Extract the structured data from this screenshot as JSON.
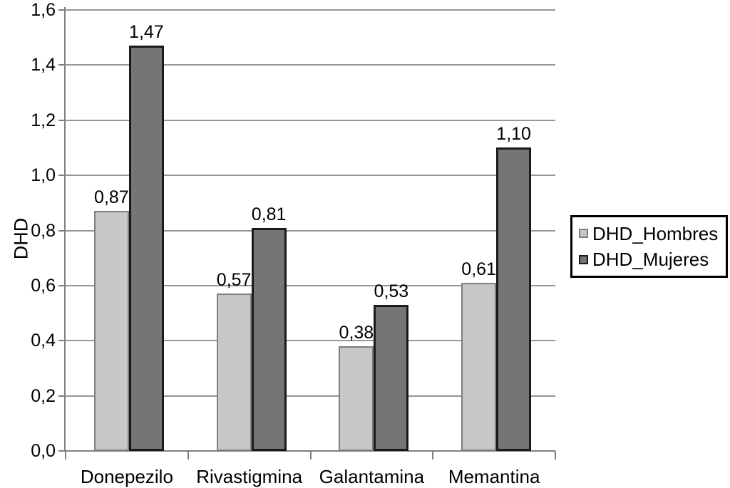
{
  "chart_data": {
    "type": "bar",
    "title": "",
    "xlabel": "",
    "ylabel": "DHD",
    "categories": [
      "Donepezilo",
      "Rivastigmina",
      "Galantamina",
      "Memantina"
    ],
    "series": [
      {
        "name": "DHD_Hombres",
        "values": [
          0.87,
          0.57,
          0.38,
          0.61
        ],
        "value_labels": [
          "0,87",
          "0,57",
          "0,38",
          "0,61"
        ],
        "fill": "#c5c7c9",
        "border": "#7f7f7f"
      },
      {
        "name": "DHD_Mujeres",
        "values": [
          1.47,
          0.81,
          0.53,
          1.1
        ],
        "value_labels": [
          "1,47",
          "0,81",
          "0,53",
          "1,10"
        ],
        "fill": "#737577",
        "border": "#1a1a1a"
      }
    ],
    "ylim": [
      0,
      1.6
    ],
    "ytick_step": 0.2,
    "ytick_labels": [
      "0,0",
      "0,2",
      "0,4",
      "0,6",
      "0,8",
      "1,0",
      "1,2",
      "1,4",
      "1,6"
    ],
    "grid": true,
    "legend_position": "right"
  },
  "colors": {
    "background": "#ffffff",
    "gridline": "#969696",
    "axis": "#7f7f7f",
    "text": "#000000",
    "legend_border": "#000000"
  }
}
